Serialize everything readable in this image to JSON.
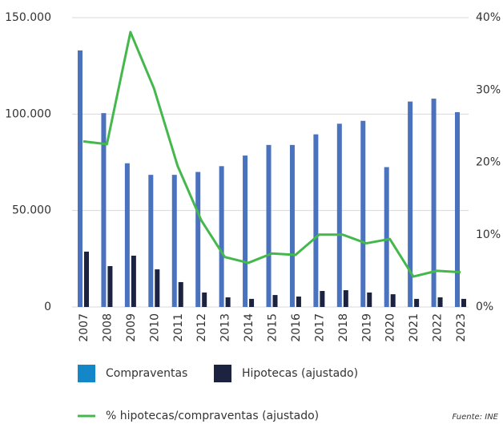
{
  "chart_data": {
    "type": "bar",
    "categories": [
      "2007",
      "2008",
      "2009",
      "2010",
      "2011",
      "2012",
      "2013",
      "2014",
      "2015",
      "2016",
      "2017",
      "2018",
      "2019",
      "2020",
      "2021",
      "2022",
      "2023"
    ],
    "series": [
      {
        "name": "Compraventas",
        "color": "#4a72bf",
        "legend_color": "#1487c9",
        "values": [
          133000,
          100500,
          74500,
          68500,
          68500,
          70000,
          73000,
          78500,
          84000,
          84000,
          89500,
          95000,
          96500,
          72500,
          106500,
          108000,
          101000
        ]
      },
      {
        "name": "Hipotecas (ajustado)",
        "color": "#1c2340",
        "values": [
          28700,
          21200,
          26600,
          19500,
          12900,
          7500,
          5000,
          4200,
          6200,
          5400,
          8300,
          8700,
          7500,
          6600,
          4200,
          5000,
          4200
        ]
      },
      {
        "name": "% hipotecas/compraventas (ajustado)",
        "color": "#44b84c",
        "type": "line",
        "axis": "y2",
        "values": [
          22.9,
          22.5,
          38,
          30.2,
          19.5,
          12,
          6.9,
          6.1,
          7.4,
          7.2,
          10,
          10,
          8.8,
          9.4,
          4.2,
          5,
          4.8
        ]
      }
    ],
    "ylim": [
      0,
      150000
    ],
    "yticks": [
      0,
      {
        "value": 50000,
        "label": "50.000"
      },
      {
        "value": 100000,
        "label": "100.000"
      },
      {
        "value": 150000,
        "label": "150.000"
      }
    ],
    "y2lim": [
      0,
      40
    ],
    "y2ticks": [
      {
        "value": 0,
        "label": "0%"
      },
      {
        "value": 10,
        "label": "10%"
      },
      {
        "value": 20,
        "label": "20%"
      },
      {
        "value": 30,
        "label": "30%"
      },
      {
        "value": 40,
        "label": "40%"
      }
    ],
    "grid": true,
    "source": "Fuente: INE"
  }
}
